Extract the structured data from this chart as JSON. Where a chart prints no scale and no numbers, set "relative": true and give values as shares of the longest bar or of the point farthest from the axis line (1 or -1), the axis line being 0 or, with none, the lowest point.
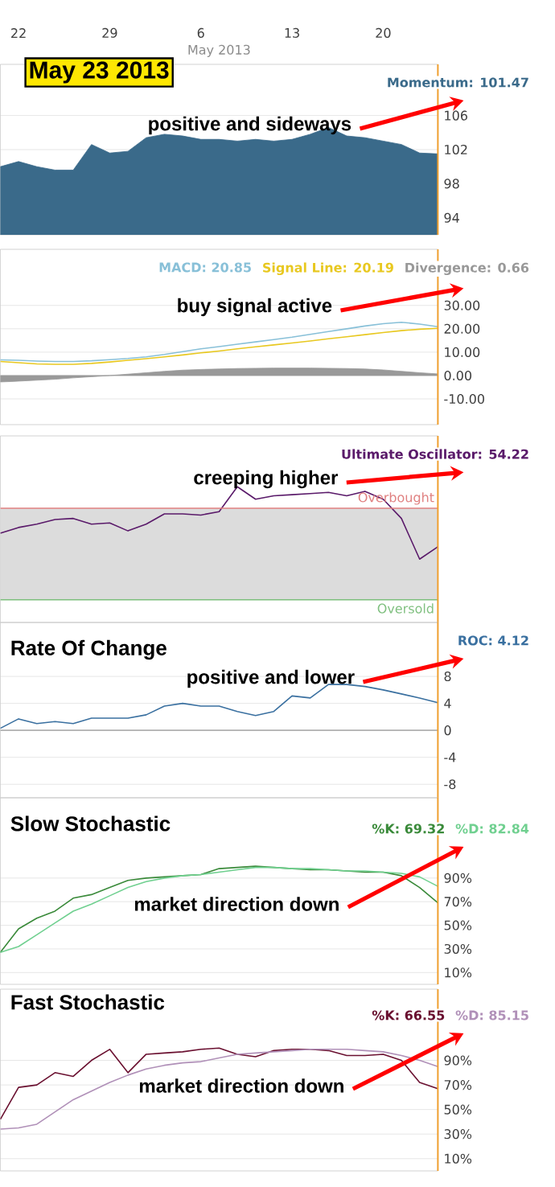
{
  "chart_data": [
    {
      "type": "area",
      "title": "May 23 2013",
      "xlabel": "May 2013",
      "categories": [
        null,
        "22",
        null,
        null,
        null,
        null,
        "29",
        null,
        null,
        null,
        null,
        "6",
        null,
        null,
        null,
        null,
        "13",
        null,
        null,
        null,
        null,
        "20",
        null,
        null,
        null
      ],
      "ylim": [
        92,
        112
      ],
      "yticks": [
        94,
        98,
        102,
        106
      ],
      "grid": "y",
      "series": [
        {
          "color": "#3a6a8a",
          "values": [
            100.0,
            100.6,
            100.0,
            99.6,
            99.6,
            102.6,
            101.6,
            101.8,
            103.4,
            103.8,
            103.6,
            103.2,
            103.2,
            103.0,
            103.2,
            103.0,
            103.2,
            103.8,
            104.6,
            103.6,
            103.4,
            103.0,
            102.6,
            101.6,
            101.5
          ]
        }
      ],
      "annotations": [
        "positive and sideways",
        "Momentum: 101.47"
      ]
    },
    {
      "type": "line",
      "categories": [
        null,
        null,
        null,
        null,
        null,
        null,
        null,
        null,
        null,
        null,
        null,
        null,
        null,
        null,
        null,
        null,
        null,
        null,
        null,
        null,
        null,
        null,
        null,
        null,
        null
      ],
      "tick_labels": "y",
      "ylim": [
        -21,
        54
      ],
      "yticks": [
        {
          "value": -10,
          "label": "-10.00"
        },
        {
          "value": 0,
          "label": "0.00"
        },
        {
          "value": 10,
          "label": "10.00"
        },
        {
          "value": 20,
          "label": "20.00"
        },
        {
          "value": 30,
          "label": "30.00"
        }
      ],
      "grid": "y",
      "series": [
        {
          "color": "#88c0d8",
          "values": [
            6.7,
            6.5,
            6.2,
            6.0,
            6.0,
            6.3,
            6.8,
            7.3,
            8.0,
            9.0,
            10.2,
            11.4,
            12.4,
            13.4,
            14.4,
            15.4,
            16.4,
            17.6,
            18.8,
            20.0,
            21.2,
            22.2,
            22.8,
            22.0,
            20.9
          ]
        },
        {
          "color": "#e8c820",
          "values": [
            6.0,
            5.5,
            5.0,
            4.8,
            4.8,
            5.2,
            5.8,
            6.5,
            7.2,
            8.0,
            8.8,
            9.7,
            10.5,
            11.4,
            12.3,
            13.1,
            13.9,
            14.8,
            15.7,
            16.6,
            17.5,
            18.4,
            19.2,
            19.8,
            20.2
          ]
        },
        {
          "type": "area",
          "color": "#999999",
          "values": [
            -2.8,
            -2.4,
            -2.0,
            -1.6,
            -1.0,
            -0.5,
            0.0,
            0.6,
            1.2,
            1.8,
            2.3,
            2.6,
            2.8,
            3.0,
            3.1,
            3.2,
            3.2,
            3.2,
            3.1,
            3.0,
            2.8,
            2.4,
            1.8,
            1.2,
            0.7
          ]
        }
      ],
      "annotations": [
        "buy signal active",
        "MACD: 20.85",
        "Signal Line: 20.19",
        "Divergence: 0.66"
      ]
    },
    {
      "type": "line",
      "relative": true,
      "categories": [
        null,
        null,
        null,
        null,
        null,
        null,
        null,
        null,
        null,
        null,
        null,
        null,
        null,
        null,
        null,
        null,
        null,
        null,
        null,
        null,
        null,
        null,
        null,
        null,
        null
      ],
      "tick_labels": false,
      "series": [
        {
          "color": "#5a1a6a",
          "values": [
            0.59,
            0.64,
            0.67,
            0.71,
            0.72,
            0.67,
            0.68,
            0.61,
            0.67,
            0.76,
            0.76,
            0.75,
            0.78,
            1.0,
            0.89,
            0.92,
            0.93,
            0.94,
            0.95,
            0.92,
            0.96,
            0.89,
            0.72,
            0.36,
            0.47
          ]
        }
      ],
      "annotations": [
        "creeping higher",
        "Ultimate Oscillator: 54.22"
      ],
      "bands": [
        {
          "axis": "y",
          "from": 0,
          "to": 0.81,
          "color": "#dcdcdc"
        }
      ],
      "ref_lines": [
        {
          "axis": "y",
          "value": 0.81,
          "label": "Overbought",
          "color": "#e08080"
        },
        {
          "axis": "y",
          "value": 0,
          "label": "Oversold",
          "color": "#80c080"
        }
      ]
    },
    {
      "type": "line",
      "title": "Rate Of Change",
      "categories": [
        null,
        null,
        null,
        null,
        null,
        null,
        null,
        null,
        null,
        null,
        null,
        null,
        null,
        null,
        null,
        null,
        null,
        null,
        null,
        null,
        null,
        null,
        null,
        null,
        null
      ],
      "tick_labels": "y",
      "ylim": [
        -10,
        16
      ],
      "yticks": [
        -8,
        -4,
        0,
        4,
        8
      ],
      "grid": "y",
      "series": [
        {
          "color": "#3a70a0",
          "values": [
            0.3,
            1.7,
            1.0,
            1.3,
            1.0,
            1.8,
            1.8,
            1.8,
            2.3,
            3.6,
            4.0,
            3.6,
            3.6,
            2.8,
            2.2,
            2.8,
            5.1,
            4.8,
            6.8,
            6.8,
            6.5,
            6.0,
            5.4,
            4.8,
            4.1
          ]
        }
      ],
      "annotations": [
        "positive and lower",
        "ROC: 4.12"
      ],
      "ref_lines": [
        {
          "axis": "y",
          "value": 0,
          "color": "#b0b0b0"
        }
      ]
    },
    {
      "type": "line",
      "title": "Slow Stochastic",
      "categories": [
        null,
        null,
        null,
        null,
        null,
        null,
        null,
        null,
        null,
        null,
        null,
        null,
        null,
        null,
        null,
        null,
        null,
        null,
        null,
        null,
        null,
        null,
        null,
        null,
        null
      ],
      "tick_labels": "y",
      "ylim": [
        0,
        158
      ],
      "yticks": [
        {
          "value": 10,
          "label": "10%"
        },
        {
          "value": 30,
          "label": "30%"
        },
        {
          "value": 50,
          "label": "50%"
        },
        {
          "value": 70,
          "label": "70%"
        },
        {
          "value": 90,
          "label": "90%"
        }
      ],
      "grid": "y",
      "series": [
        {
          "color": "#3a8a3a",
          "values": [
            27,
            47,
            56,
            62,
            73,
            76,
            82,
            88,
            90,
            91,
            92,
            93,
            98,
            99,
            100,
            99,
            98,
            97,
            97,
            96,
            95,
            95,
            92,
            82,
            69
          ]
        },
        {
          "color": "#70d090",
          "values": [
            27,
            32,
            42,
            52,
            62,
            68,
            75,
            82,
            87,
            90,
            92,
            93,
            95,
            97,
            99,
            99,
            98,
            98,
            97,
            96,
            96,
            95,
            94,
            91,
            83
          ]
        }
      ],
      "annotations": [
        "market direction down",
        "%K: 69.32",
        "%D: 82.84"
      ]
    },
    {
      "type": "line",
      "title": "Fast Stochastic",
      "categories": [
        null,
        null,
        null,
        null,
        null,
        null,
        null,
        null,
        null,
        null,
        null,
        null,
        null,
        null,
        null,
        null,
        null,
        null,
        null,
        null,
        null,
        null,
        null,
        null,
        null
      ],
      "tick_labels": "y",
      "ylim": [
        0,
        148
      ],
      "yticks": [
        {
          "value": 10,
          "label": "10%"
        },
        {
          "value": 30,
          "label": "30%"
        },
        {
          "value": 50,
          "label": "50%"
        },
        {
          "value": 70,
          "label": "70%"
        },
        {
          "value": 90,
          "label": "90%"
        }
      ],
      "grid": "y",
      "series": [
        {
          "color": "#6a1030",
          "values": [
            42,
            68,
            70,
            80,
            77,
            90,
            99,
            80,
            95,
            96,
            97,
            99,
            100,
            95,
            93,
            98,
            99,
            99,
            98,
            94,
            94,
            95,
            90,
            72,
            67
          ]
        },
        {
          "color": "#b090b8",
          "values": [
            34,
            35,
            38,
            48,
            58,
            65,
            72,
            78,
            83,
            86,
            88,
            89,
            92,
            95,
            96,
            97,
            98,
            99,
            99,
            99,
            98,
            97,
            94,
            90,
            85
          ]
        }
      ],
      "annotations": [
        "market direction down",
        "%K: 66.55",
        "%D: 85.15"
      ]
    }
  ]
}
